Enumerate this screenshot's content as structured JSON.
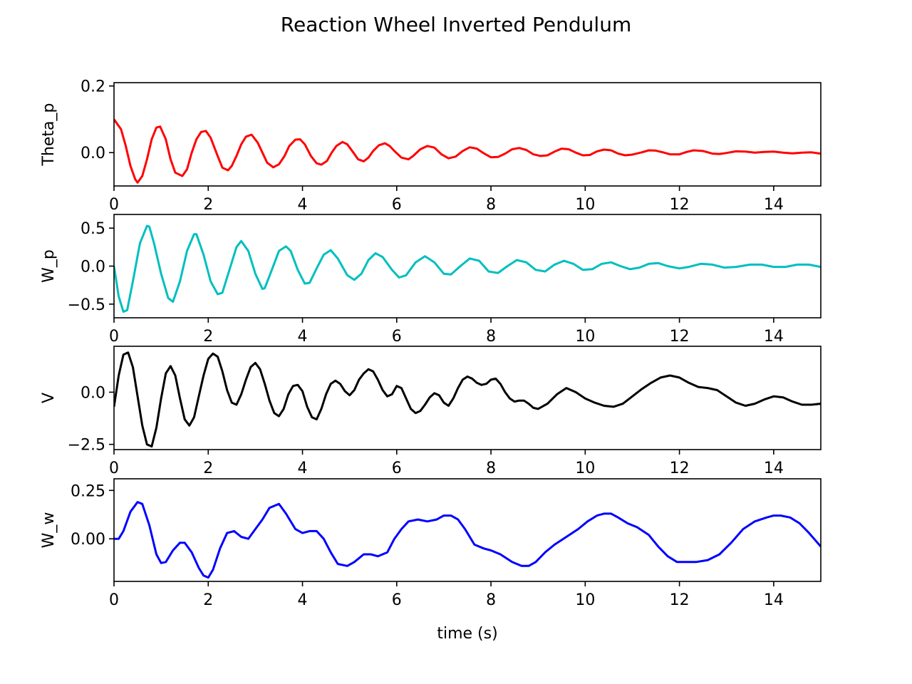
{
  "chart_data": [
    {
      "type": "line",
      "title": "Reaction Wheel Inverted Pendulum",
      "ylabel": "Theta_p",
      "xlabel": "",
      "xlim": [
        0,
        15
      ],
      "ylim": [
        -0.1,
        0.21
      ],
      "xticks": [
        "0",
        "2",
        "4",
        "6",
        "8",
        "10",
        "12",
        "14"
      ],
      "yticks": [
        "0.2",
        "0.0"
      ],
      "series": [
        {
          "color": "#ff0000",
          "x": [
            0,
            0.15,
            0.25,
            0.35,
            0.45,
            0.5,
            0.6,
            0.7,
            0.8,
            0.9,
            0.98,
            1.1,
            1.2,
            1.3,
            1.45,
            1.55,
            1.65,
            1.75,
            1.85,
            1.95,
            2.05,
            2.2,
            2.3,
            2.42,
            2.5,
            2.6,
            2.7,
            2.8,
            2.92,
            3.05,
            3.15,
            3.25,
            3.38,
            3.5,
            3.62,
            3.72,
            3.85,
            3.95,
            4.05,
            4.18,
            4.3,
            4.4,
            4.52,
            4.62,
            4.72,
            4.85,
            4.95,
            5.08,
            5.18,
            5.3,
            5.4,
            5.5,
            5.62,
            5.75,
            5.85,
            5.95,
            6.1,
            6.25,
            6.35,
            6.5,
            6.65,
            6.8,
            6.95,
            7.1,
            7.25,
            7.4,
            7.55,
            7.7,
            7.85,
            8.0,
            8.15,
            8.3,
            8.45,
            8.6,
            8.75,
            8.9,
            9.05,
            9.2,
            9.35,
            9.5,
            9.65,
            9.8,
            9.95,
            10.1,
            10.25,
            10.4,
            10.55,
            10.7,
            10.85,
            11.0,
            11.2,
            11.35,
            11.5,
            11.65,
            11.8,
            12.0,
            12.15,
            12.3,
            12.5,
            12.7,
            12.85,
            13.0,
            13.2,
            13.4,
            13.6,
            13.8,
            14.0,
            14.2,
            14.4,
            14.6,
            14.8,
            15.0
          ],
          "y": [
            0.1,
            0.07,
            0.02,
            -0.04,
            -0.08,
            -0.09,
            -0.07,
            -0.02,
            0.04,
            0.075,
            0.078,
            0.04,
            -0.02,
            -0.06,
            -0.07,
            -0.05,
            0.0,
            0.04,
            0.062,
            0.065,
            0.045,
            -0.01,
            -0.045,
            -0.053,
            -0.04,
            -0.01,
            0.025,
            0.048,
            0.054,
            0.03,
            0.0,
            -0.03,
            -0.044,
            -0.035,
            -0.01,
            0.02,
            0.039,
            0.04,
            0.025,
            -0.01,
            -0.032,
            -0.036,
            -0.025,
            0.0,
            0.02,
            0.032,
            0.025,
            0.0,
            -0.02,
            -0.026,
            -0.015,
            0.005,
            0.022,
            0.028,
            0.02,
            0.005,
            -0.015,
            -0.02,
            -0.01,
            0.01,
            0.02,
            0.015,
            -0.005,
            -0.017,
            -0.012,
            0.005,
            0.016,
            0.012,
            -0.002,
            -0.014,
            -0.013,
            -0.003,
            0.01,
            0.014,
            0.008,
            -0.005,
            -0.01,
            -0.008,
            0.003,
            0.012,
            0.01,
            0.0,
            -0.008,
            -0.007,
            0.004,
            0.009,
            0.007,
            -0.003,
            -0.008,
            -0.006,
            0.001,
            0.007,
            0.006,
            0.001,
            -0.005,
            -0.005,
            0.002,
            0.007,
            0.005,
            -0.003,
            -0.004,
            -0.001,
            0.004,
            0.003,
            0.0,
            0.002,
            0.003,
            0.0,
            -0.002,
            0.0,
            0.001,
            -0.003
          ]
        }
      ]
    },
    {
      "type": "line",
      "ylabel": "W_p",
      "xlabel": "",
      "xlim": [
        0,
        15
      ],
      "ylim": [
        -0.68,
        0.68
      ],
      "xticks": [
        "0",
        "2",
        "4",
        "6",
        "8",
        "10",
        "12",
        "14"
      ],
      "yticks": [
        "0.5",
        "0.0",
        "−0.5"
      ],
      "series": [
        {
          "color": "#00bfbf",
          "x": [
            0,
            0.1,
            0.2,
            0.28,
            0.4,
            0.55,
            0.7,
            0.75,
            0.85,
            1.0,
            1.15,
            1.25,
            1.4,
            1.55,
            1.7,
            1.75,
            1.9,
            2.05,
            2.2,
            2.3,
            2.45,
            2.6,
            2.7,
            2.85,
            3.0,
            3.15,
            3.2,
            3.35,
            3.5,
            3.65,
            3.75,
            3.9,
            4.05,
            4.15,
            4.3,
            4.45,
            4.6,
            4.75,
            4.95,
            5.1,
            5.25,
            5.4,
            5.55,
            5.7,
            5.9,
            6.05,
            6.2,
            6.4,
            6.6,
            6.8,
            7.0,
            7.15,
            7.35,
            7.55,
            7.75,
            7.95,
            8.15,
            8.35,
            8.55,
            8.75,
            8.95,
            9.15,
            9.35,
            9.55,
            9.75,
            9.95,
            10.15,
            10.35,
            10.55,
            10.75,
            10.95,
            11.15,
            11.35,
            11.55,
            11.75,
            12.0,
            12.2,
            12.45,
            12.7,
            12.95,
            13.2,
            13.5,
            13.75,
            14.0,
            14.25,
            14.5,
            14.75,
            15.0
          ],
          "y": [
            0.0,
            -0.4,
            -0.6,
            -0.58,
            -0.2,
            0.3,
            0.53,
            0.52,
            0.3,
            -0.1,
            -0.42,
            -0.47,
            -0.2,
            0.2,
            0.42,
            0.42,
            0.15,
            -0.2,
            -0.37,
            -0.35,
            -0.05,
            0.25,
            0.33,
            0.2,
            -0.1,
            -0.3,
            -0.29,
            -0.05,
            0.2,
            0.26,
            0.2,
            -0.05,
            -0.23,
            -0.22,
            -0.03,
            0.15,
            0.21,
            0.1,
            -0.12,
            -0.18,
            -0.1,
            0.08,
            0.17,
            0.12,
            -0.05,
            -0.15,
            -0.12,
            0.05,
            0.13,
            0.05,
            -0.1,
            -0.11,
            0.0,
            0.1,
            0.07,
            -0.07,
            -0.09,
            0.0,
            0.08,
            0.05,
            -0.05,
            -0.07,
            0.02,
            0.07,
            0.03,
            -0.05,
            -0.04,
            0.03,
            0.05,
            0.0,
            -0.04,
            -0.02,
            0.03,
            0.04,
            0.0,
            -0.03,
            -0.01,
            0.03,
            0.02,
            -0.02,
            -0.01,
            0.02,
            0.02,
            -0.01,
            -0.01,
            0.02,
            0.02,
            -0.01
          ]
        }
      ]
    },
    {
      "type": "line",
      "ylabel": "V",
      "xlabel": "",
      "xlim": [
        0,
        15
      ],
      "ylim": [
        -2.75,
        2.2
      ],
      "xticks": [
        "0",
        "2",
        "4",
        "6",
        "8",
        "10",
        "12",
        "14"
      ],
      "yticks": [
        "0.0",
        "−2.5"
      ],
      "series": [
        {
          "color": "#000000",
          "x": [
            0,
            0.1,
            0.2,
            0.3,
            0.4,
            0.5,
            0.6,
            0.7,
            0.8,
            0.9,
            1.0,
            1.1,
            1.2,
            1.3,
            1.4,
            1.5,
            1.6,
            1.7,
            1.8,
            1.9,
            2.0,
            2.1,
            2.2,
            2.3,
            2.4,
            2.5,
            2.6,
            2.7,
            2.8,
            2.9,
            3.0,
            3.1,
            3.2,
            3.3,
            3.4,
            3.5,
            3.6,
            3.7,
            3.8,
            3.9,
            4.0,
            4.1,
            4.2,
            4.3,
            4.4,
            4.5,
            4.6,
            4.7,
            4.8,
            4.9,
            5.0,
            5.1,
            5.2,
            5.3,
            5.4,
            5.5,
            5.6,
            5.7,
            5.8,
            5.9,
            6.0,
            6.1,
            6.2,
            6.3,
            6.4,
            6.5,
            6.6,
            6.7,
            6.8,
            6.9,
            7.0,
            7.1,
            7.2,
            7.3,
            7.4,
            7.5,
            7.6,
            7.7,
            7.8,
            7.9,
            8.0,
            8.1,
            8.2,
            8.3,
            8.4,
            8.5,
            8.6,
            8.7,
            8.8,
            8.9,
            9.0,
            9.2,
            9.4,
            9.6,
            9.8,
            10.0,
            10.2,
            10.4,
            10.6,
            10.8,
            11.0,
            11.2,
            11.4,
            11.6,
            11.8,
            12.0,
            12.2,
            12.4,
            12.6,
            12.8,
            13.0,
            13.2,
            13.4,
            13.6,
            13.8,
            14.0,
            14.2,
            14.4,
            14.6,
            14.8,
            15.0
          ],
          "y": [
            -0.7,
            0.8,
            1.8,
            1.9,
            1.2,
            -0.2,
            -1.6,
            -2.5,
            -2.6,
            -1.7,
            -0.3,
            0.9,
            1.25,
            0.8,
            -0.3,
            -1.3,
            -1.6,
            -1.2,
            -0.2,
            0.8,
            1.6,
            1.85,
            1.7,
            1.0,
            0.1,
            -0.5,
            -0.6,
            -0.1,
            0.6,
            1.2,
            1.4,
            1.1,
            0.4,
            -0.4,
            -1.0,
            -1.15,
            -0.8,
            -0.1,
            0.3,
            0.35,
            0.05,
            -0.7,
            -1.2,
            -1.3,
            -0.8,
            -0.1,
            0.4,
            0.55,
            0.4,
            0.05,
            -0.15,
            0.1,
            0.6,
            0.9,
            1.1,
            1.0,
            0.6,
            0.1,
            -0.2,
            -0.1,
            0.3,
            0.2,
            -0.3,
            -0.8,
            -1.0,
            -0.9,
            -0.6,
            -0.25,
            -0.05,
            -0.15,
            -0.5,
            -0.65,
            -0.3,
            0.2,
            0.6,
            0.75,
            0.65,
            0.45,
            0.35,
            0.4,
            0.6,
            0.65,
            0.4,
            0.0,
            -0.3,
            -0.45,
            -0.4,
            -0.4,
            -0.55,
            -0.75,
            -0.8,
            -0.55,
            -0.1,
            0.2,
            0.0,
            -0.3,
            -0.5,
            -0.65,
            -0.7,
            -0.55,
            -0.2,
            0.15,
            0.45,
            0.7,
            0.8,
            0.7,
            0.45,
            0.25,
            0.2,
            0.1,
            -0.2,
            -0.5,
            -0.65,
            -0.55,
            -0.35,
            -0.2,
            -0.25,
            -0.45,
            -0.6,
            -0.6,
            -0.55
          ]
        }
      ]
    },
    {
      "type": "line",
      "ylabel": "W_w",
      "xlabel": "time (s)",
      "xlim": [
        0,
        15
      ],
      "ylim": [
        -0.22,
        0.31
      ],
      "xticks": [
        "0",
        "2",
        "4",
        "6",
        "8",
        "10",
        "12",
        "14"
      ],
      "yticks": [
        "0.25",
        "0.00"
      ],
      "series": [
        {
          "color": "#0000ff",
          "x": [
            0,
            0.1,
            0.2,
            0.35,
            0.5,
            0.6,
            0.75,
            0.9,
            1.0,
            1.1,
            1.25,
            1.4,
            1.5,
            1.65,
            1.8,
            1.9,
            2.0,
            2.1,
            2.25,
            2.4,
            2.55,
            2.7,
            2.85,
            3.0,
            3.15,
            3.3,
            3.5,
            3.65,
            3.85,
            4.0,
            4.15,
            4.3,
            4.45,
            4.6,
            4.75,
            4.95,
            5.1,
            5.3,
            5.45,
            5.6,
            5.8,
            5.95,
            6.1,
            6.25,
            6.45,
            6.65,
            6.85,
            7.0,
            7.15,
            7.3,
            7.45,
            7.65,
            7.85,
            8.0,
            8.2,
            8.45,
            8.65,
            8.8,
            8.95,
            9.15,
            9.35,
            9.6,
            9.85,
            10.05,
            10.25,
            10.4,
            10.55,
            10.7,
            10.9,
            11.1,
            11.35,
            11.55,
            11.75,
            11.95,
            12.1,
            12.35,
            12.6,
            12.85,
            13.1,
            13.35,
            13.6,
            13.85,
            14.0,
            14.15,
            14.35,
            14.55,
            14.75,
            15.0
          ],
          "y": [
            0.0,
            0.0,
            0.04,
            0.14,
            0.19,
            0.18,
            0.07,
            -0.08,
            -0.125,
            -0.12,
            -0.06,
            -0.02,
            -0.02,
            -0.07,
            -0.15,
            -0.19,
            -0.2,
            -0.16,
            -0.05,
            0.03,
            0.04,
            0.01,
            0.0,
            0.05,
            0.1,
            0.16,
            0.18,
            0.13,
            0.05,
            0.03,
            0.04,
            0.04,
            0.0,
            -0.07,
            -0.13,
            -0.14,
            -0.12,
            -0.08,
            -0.08,
            -0.09,
            -0.07,
            0.0,
            0.05,
            0.09,
            0.1,
            0.09,
            0.1,
            0.12,
            0.12,
            0.1,
            0.05,
            -0.03,
            -0.05,
            -0.06,
            -0.08,
            -0.12,
            -0.14,
            -0.14,
            -0.12,
            -0.07,
            -0.03,
            0.01,
            0.05,
            0.09,
            0.12,
            0.13,
            0.13,
            0.11,
            0.08,
            0.06,
            0.02,
            -0.04,
            -0.09,
            -0.12,
            -0.12,
            -0.12,
            -0.11,
            -0.08,
            -0.02,
            0.05,
            0.09,
            0.11,
            0.12,
            0.12,
            0.11,
            0.08,
            0.03,
            -0.04
          ]
        }
      ]
    }
  ]
}
